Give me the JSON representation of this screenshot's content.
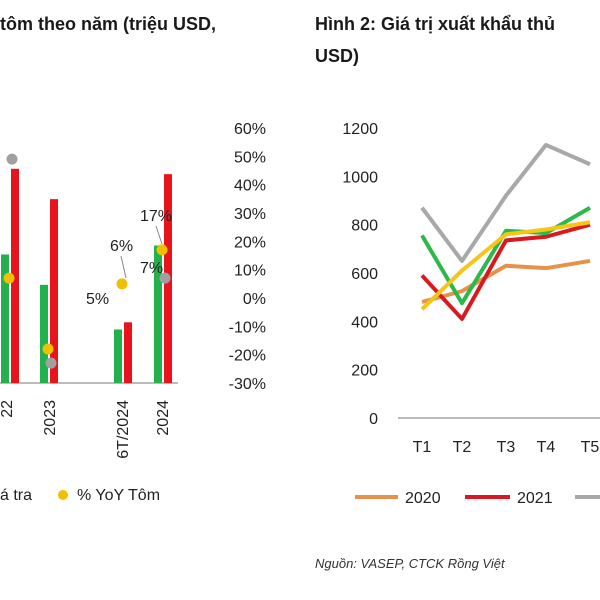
{
  "chart_data": [
    {
      "type": "bar",
      "title": "tôm theo năm (triệu USD,",
      "categories": [
        "22",
        "2023",
        "6T/2024",
        "2024"
      ],
      "y2_ticks": [
        "60%",
        "50%",
        "40%",
        "30%",
        "20%",
        "10%",
        "0%",
        "-10%",
        "-20%",
        "-30%"
      ],
      "y2lim": [
        -30,
        60
      ],
      "series": [
        {
          "name": "",
          "color": "#22b14c",
          "values": [
            72,
            55,
            30,
            77
          ]
        },
        {
          "name": "",
          "color": "#e8141c",
          "values": [
            120,
            103,
            34,
            117
          ]
        }
      ],
      "markers": [
        {
          "name": "",
          "color": "#a0a0a0",
          "values": [
            49,
            -23,
            null,
            7
          ]
        },
        {
          "name": "% YoY Tôm",
          "color": "#f0c000",
          "values": [
            7,
            -18,
            5,
            17
          ]
        }
      ],
      "data_labels": [
        "6%",
        "5%",
        "7%",
        "17%"
      ],
      "legend": [
        "á tra",
        "% YoY Tôm"
      ],
      "legend_position": "bottom"
    },
    {
      "type": "line",
      "title_line1": "Hình 2: Giá trị xuất khẩu thủ",
      "title_line2": "USD)",
      "categories": [
        "T1",
        "T2",
        "T3",
        "T4",
        "T5"
      ],
      "y_ticks": [
        "1200",
        "1000",
        "800",
        "600",
        "400",
        "200",
        "0"
      ],
      "ylim": [
        0,
        1200
      ],
      "series": [
        {
          "name": "2020",
          "color": "#e8914a",
          "values": [
            480,
            525,
            630,
            620,
            650
          ]
        },
        {
          "name": "2021",
          "color": "#d81a20",
          "values": [
            590,
            410,
            735,
            750,
            800
          ]
        },
        {
          "name": "",
          "color": "#a8a8a8",
          "values": [
            870,
            650,
            920,
            1130,
            1050
          ]
        },
        {
          "name": "",
          "color": "#2db84a",
          "values": [
            755,
            475,
            775,
            765,
            870
          ]
        },
        {
          "name": "",
          "color": "#f5c518",
          "values": [
            450,
            610,
            760,
            780,
            810
          ]
        }
      ],
      "legend": [
        "2020",
        "2021"
      ],
      "legend_position": "bottom"
    }
  ],
  "source": "Nguồn: VASEP, CTCK Rồng Việt"
}
